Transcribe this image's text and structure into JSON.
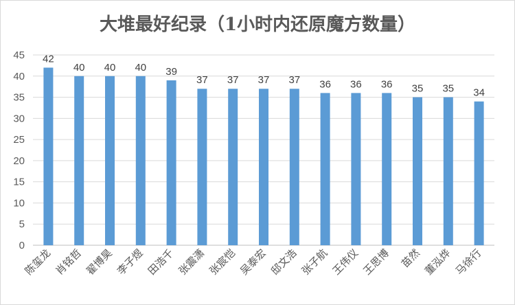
{
  "chart_data": {
    "type": "bar",
    "title": "大堆最好纪录（1小时内还原魔方数量）",
    "categories": [
      "陈玺龙",
      "肖铭哲",
      "翟博昊",
      "李子煜",
      "田浩千",
      "张震潇",
      "张宸恺",
      "吴泰宏",
      "邸文浩",
      "张子航",
      "王伟仪",
      "王思博",
      "苗然",
      "董泓烨",
      "马徐行"
    ],
    "values": [
      42,
      40,
      40,
      40,
      39,
      37,
      37,
      37,
      37,
      36,
      36,
      36,
      35,
      35,
      34
    ],
    "ylim": [
      0,
      45
    ],
    "yticks": [
      0,
      5,
      10,
      15,
      20,
      25,
      30,
      35,
      40,
      45
    ],
    "grid": true,
    "bar_color": "#5b9bd5",
    "legend": "none"
  }
}
